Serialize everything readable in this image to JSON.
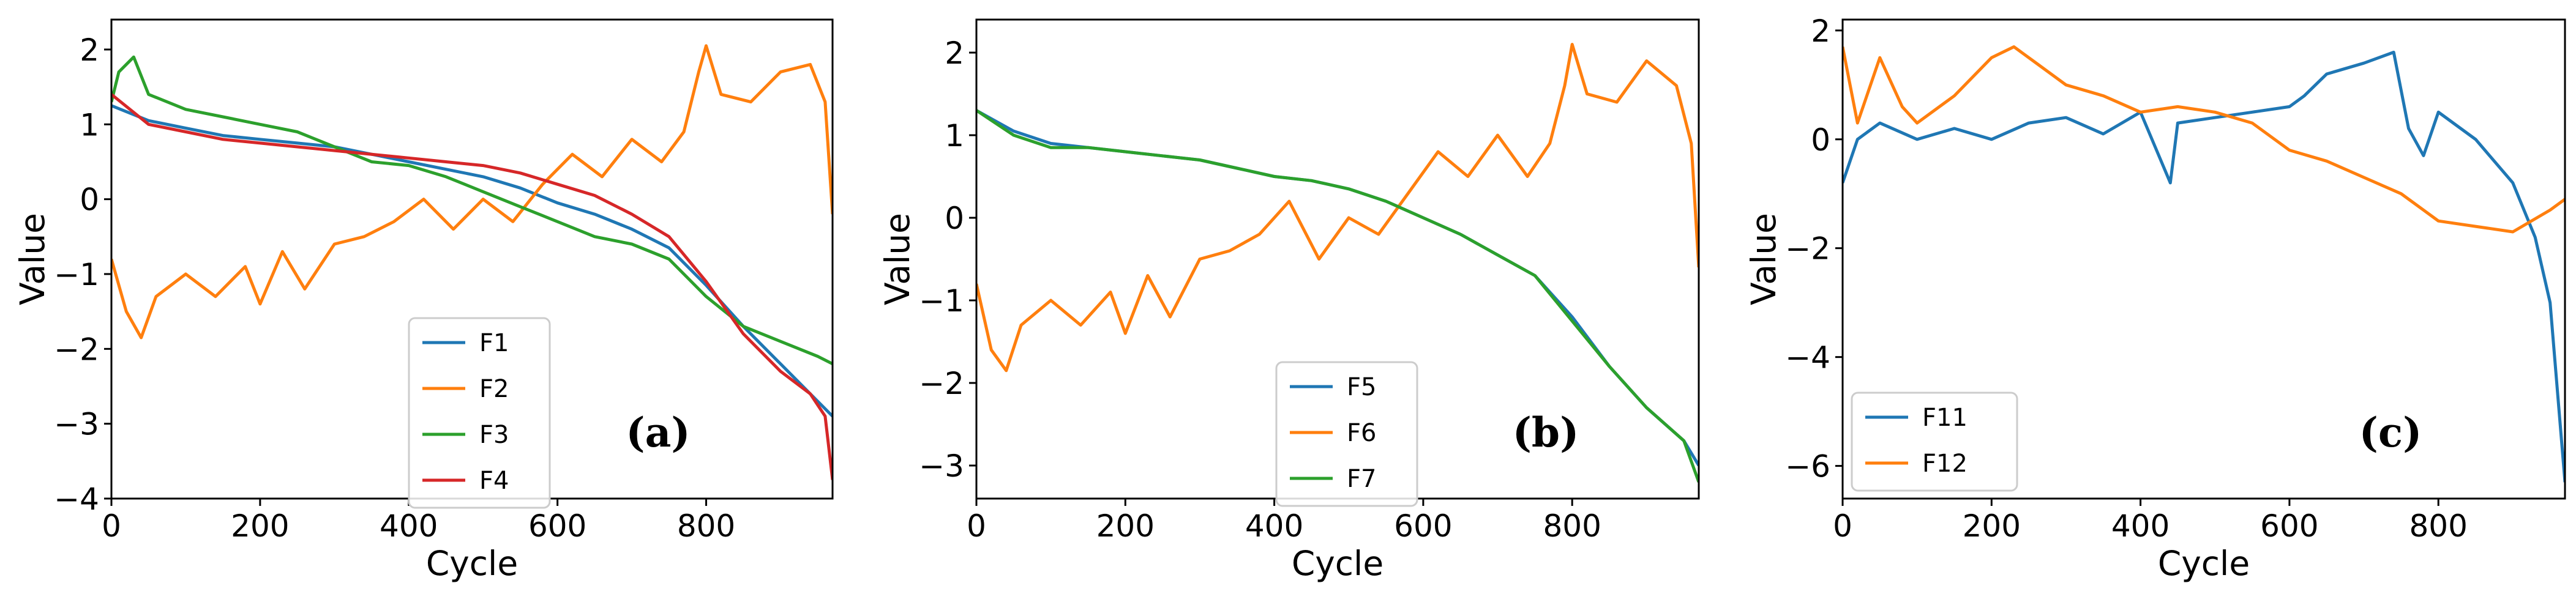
{
  "chart_data": [
    {
      "type": "line",
      "panel_label": "(a)",
      "xlabel": "Cycle",
      "ylabel": "Value",
      "xlim": [
        0,
        970
      ],
      "ylim": [
        -4.0,
        2.4
      ],
      "xticks": [
        0,
        200,
        400,
        600,
        800
      ],
      "xtick_labels": [
        "0",
        "200",
        "400",
        "600",
        "800"
      ],
      "yticks": [
        2,
        1,
        0,
        -1,
        -2,
        -3,
        -4
      ],
      "ytick_labels": [
        "2",
        "1",
        "0",
        "−1",
        "−2",
        "−3",
        "−4"
      ],
      "legend_position": "lower-center",
      "series": [
        {
          "name": "F1",
          "color": "#1f77b4",
          "x": [
            0,
            50,
            100,
            150,
            200,
            250,
            300,
            350,
            400,
            450,
            500,
            550,
            600,
            650,
            700,
            750,
            800,
            850,
            900,
            950,
            970
          ],
          "values": [
            1.25,
            1.05,
            0.95,
            0.85,
            0.8,
            0.75,
            0.7,
            0.6,
            0.5,
            0.4,
            0.3,
            0.15,
            -0.05,
            -0.2,
            -0.4,
            -0.65,
            -1.15,
            -1.7,
            -2.2,
            -2.7,
            -2.9
          ]
        },
        {
          "name": "F2",
          "color": "#ff7f0e",
          "x": [
            0,
            20,
            40,
            60,
            100,
            140,
            180,
            200,
            230,
            260,
            300,
            340,
            380,
            420,
            460,
            500,
            540,
            580,
            620,
            660,
            700,
            740,
            770,
            790,
            800,
            820,
            860,
            900,
            940,
            960,
            970
          ],
          "values": [
            -0.8,
            -1.5,
            -1.85,
            -1.3,
            -1.0,
            -1.3,
            -0.9,
            -1.4,
            -0.7,
            -1.2,
            -0.6,
            -0.5,
            -0.3,
            0.0,
            -0.4,
            0.0,
            -0.3,
            0.2,
            0.6,
            0.3,
            0.8,
            0.5,
            0.9,
            1.7,
            2.05,
            1.4,
            1.3,
            1.7,
            1.8,
            1.3,
            -0.2
          ]
        },
        {
          "name": "F3",
          "color": "#2ca02c",
          "x": [
            0,
            10,
            30,
            50,
            100,
            150,
            200,
            250,
            300,
            350,
            400,
            450,
            500,
            550,
            600,
            650,
            700,
            750,
            800,
            850,
            900,
            950,
            970
          ],
          "values": [
            1.3,
            1.7,
            1.9,
            1.4,
            1.2,
            1.1,
            1.0,
            0.9,
            0.7,
            0.5,
            0.45,
            0.3,
            0.1,
            -0.1,
            -0.3,
            -0.5,
            -0.6,
            -0.8,
            -1.3,
            -1.7,
            -1.9,
            -2.1,
            -2.2
          ]
        },
        {
          "name": "F4",
          "color": "#d62728",
          "x": [
            0,
            50,
            100,
            150,
            200,
            250,
            300,
            350,
            400,
            450,
            500,
            550,
            600,
            650,
            700,
            750,
            800,
            850,
            900,
            940,
            960,
            970
          ],
          "values": [
            1.4,
            1.0,
            0.9,
            0.8,
            0.75,
            0.7,
            0.65,
            0.6,
            0.55,
            0.5,
            0.45,
            0.35,
            0.2,
            0.05,
            -0.2,
            -0.5,
            -1.1,
            -1.8,
            -2.3,
            -2.6,
            -2.9,
            -3.75
          ]
        }
      ]
    },
    {
      "type": "line",
      "panel_label": "(b)",
      "xlabel": "Cycle",
      "ylabel": "Value",
      "xlim": [
        0,
        970
      ],
      "ylim": [
        -3.4,
        2.4
      ],
      "xticks": [
        0,
        200,
        400,
        600,
        800
      ],
      "xtick_labels": [
        "0",
        "200",
        "400",
        "600",
        "800"
      ],
      "yticks": [
        2,
        1,
        0,
        -1,
        -2,
        -3
      ],
      "ytick_labels": [
        "2",
        "1",
        "0",
        "−1",
        "−2",
        "−3"
      ],
      "legend_position": "lower-center",
      "series": [
        {
          "name": "F5",
          "color": "#1f77b4",
          "x": [
            0,
            50,
            100,
            150,
            200,
            250,
            300,
            350,
            400,
            450,
            500,
            550,
            600,
            650,
            700,
            750,
            800,
            850,
            900,
            950,
            970
          ],
          "values": [
            1.3,
            1.05,
            0.9,
            0.85,
            0.8,
            0.75,
            0.7,
            0.6,
            0.5,
            0.45,
            0.35,
            0.2,
            0.0,
            -0.2,
            -0.45,
            -0.7,
            -1.2,
            -1.8,
            -2.3,
            -2.7,
            -3.0
          ]
        },
        {
          "name": "F6",
          "color": "#ff7f0e",
          "x": [
            0,
            20,
            40,
            60,
            100,
            140,
            180,
            200,
            230,
            260,
            300,
            340,
            380,
            420,
            460,
            500,
            540,
            580,
            620,
            660,
            700,
            740,
            770,
            790,
            800,
            820,
            860,
            900,
            940,
            960,
            970
          ],
          "values": [
            -0.8,
            -1.6,
            -1.85,
            -1.3,
            -1.0,
            -1.3,
            -0.9,
            -1.4,
            -0.7,
            -1.2,
            -0.5,
            -0.4,
            -0.2,
            0.2,
            -0.5,
            0.0,
            -0.2,
            0.3,
            0.8,
            0.5,
            1.0,
            0.5,
            0.9,
            1.6,
            2.1,
            1.5,
            1.4,
            1.9,
            1.6,
            0.9,
            -0.6
          ]
        },
        {
          "name": "F7",
          "color": "#2ca02c",
          "x": [
            0,
            50,
            100,
            150,
            200,
            250,
            300,
            350,
            400,
            450,
            500,
            550,
            600,
            650,
            700,
            750,
            800,
            850,
            900,
            950,
            970
          ],
          "values": [
            1.3,
            1.0,
            0.85,
            0.85,
            0.8,
            0.75,
            0.7,
            0.6,
            0.5,
            0.45,
            0.35,
            0.2,
            0.0,
            -0.2,
            -0.45,
            -0.7,
            -1.25,
            -1.8,
            -2.3,
            -2.7,
            -3.2
          ]
        }
      ]
    },
    {
      "type": "line",
      "panel_label": "(c)",
      "xlabel": "Cycle",
      "ylabel": "Value",
      "xlim": [
        0,
        970
      ],
      "ylim": [
        -6.6,
        2.2
      ],
      "xticks": [
        0,
        200,
        400,
        600,
        800
      ],
      "xtick_labels": [
        "0",
        "200",
        "400",
        "600",
        "800"
      ],
      "yticks": [
        2,
        0,
        -2,
        -4,
        -6
      ],
      "ytick_labels": [
        "2",
        "0",
        "−2",
        "−4",
        "−6"
      ],
      "legend_position": "lower-left",
      "series": [
        {
          "name": "F11",
          "color": "#1f77b4",
          "x": [
            0,
            20,
            50,
            100,
            150,
            200,
            250,
            300,
            350,
            400,
            440,
            450,
            500,
            550,
            600,
            620,
            650,
            700,
            740,
            760,
            780,
            800,
            850,
            900,
            930,
            950,
            970
          ],
          "values": [
            -0.8,
            0.0,
            0.3,
            0.0,
            0.2,
            0.0,
            0.3,
            0.4,
            0.1,
            0.5,
            -0.8,
            0.3,
            0.4,
            0.5,
            0.6,
            0.8,
            1.2,
            1.4,
            1.6,
            0.2,
            -0.3,
            0.5,
            0.0,
            -0.8,
            -1.8,
            -3.0,
            -6.3
          ]
        },
        {
          "name": "F12",
          "color": "#ff7f0e",
          "x": [
            0,
            20,
            50,
            80,
            100,
            150,
            200,
            230,
            260,
            300,
            350,
            400,
            450,
            500,
            550,
            600,
            650,
            700,
            750,
            780,
            800,
            850,
            900,
            950,
            970
          ],
          "values": [
            1.7,
            0.3,
            1.5,
            0.6,
            0.3,
            0.8,
            1.5,
            1.7,
            1.4,
            1.0,
            0.8,
            0.5,
            0.6,
            0.5,
            0.3,
            -0.2,
            -0.4,
            -0.7,
            -1.0,
            -1.3,
            -1.5,
            -1.6,
            -1.7,
            -1.3,
            -1.1
          ]
        }
      ]
    }
  ]
}
